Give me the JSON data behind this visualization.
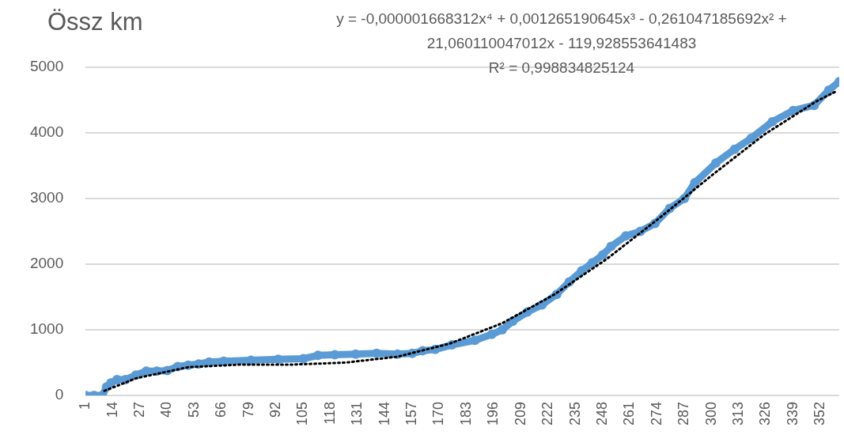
{
  "chart_data": {
    "type": "line",
    "title": "Össz km",
    "annotations": [
      "y = -0,000001668312x⁴ + 0,001265190645x³ - 0,261047185692x² + 21,060110047012x - 119,928553641483",
      "R² = 0,998834825124"
    ],
    "xlim": [
      1,
      361
    ],
    "xticks": [
      1,
      14,
      27,
      40,
      53,
      66,
      79,
      92,
      105,
      118,
      131,
      144,
      157,
      170,
      183,
      196,
      209,
      222,
      235,
      248,
      261,
      274,
      287,
      300,
      313,
      326,
      339,
      352
    ],
    "ylim": [
      0,
      5000
    ],
    "yticks": [
      0,
      1000,
      2000,
      3000,
      4000,
      5000
    ],
    "grid": "y",
    "legend": false,
    "marker": "circle",
    "series": [
      {
        "color": "#5b9bd5",
        "x": [
          1,
          5,
          9,
          11,
          13,
          16,
          20,
          25,
          30,
          35,
          40,
          45,
          50,
          55,
          60,
          67,
          80,
          93,
          105,
          112,
          120,
          130,
          140,
          150,
          157,
          162,
          168,
          176,
          187,
          195,
          200,
          205,
          212,
          219,
          226,
          232,
          238,
          243,
          248,
          252,
          259,
          266,
          273,
          280,
          287,
          292,
          302,
          311,
          319,
          329,
          339,
          349,
          356,
          361
        ],
        "values": [
          0,
          0,
          0,
          130,
          190,
          240,
          240,
          310,
          370,
          370,
          380,
          440,
          460,
          480,
          510,
          520,
          535,
          550,
          560,
          610,
          620,
          630,
          640,
          630,
          640,
          680,
          700,
          770,
          840,
          930,
          1000,
          1130,
          1270,
          1380,
          1540,
          1730,
          1900,
          2020,
          2140,
          2270,
          2430,
          2500,
          2620,
          2850,
          3000,
          3240,
          3540,
          3750,
          3920,
          4170,
          4340,
          4420,
          4650,
          4780
        ]
      },
      {
        "type": "line",
        "color": "#000000",
        "line_style": "dotted",
        "marker": "none",
        "x": [
          10,
          25,
          50,
          75,
          100,
          125,
          150,
          175,
          200,
          225,
          250,
          275,
          300,
          325,
          350,
          360
        ],
        "values": [
          70,
          260,
          430,
          470,
          470,
          500,
          590,
          790,
          1100,
          1540,
          2080,
          2700,
          3350,
          3970,
          4480,
          4640
        ]
      }
    ]
  }
}
